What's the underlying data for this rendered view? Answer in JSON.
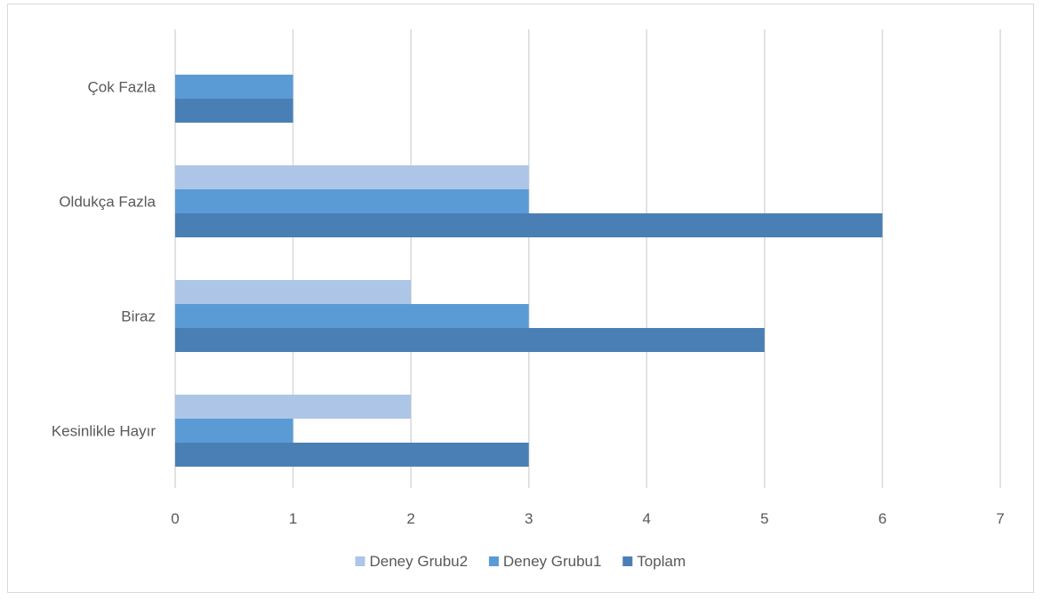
{
  "chart_data": {
    "type": "bar",
    "orientation": "horizontal",
    "categories": [
      "Kesinlikle Hayır",
      "Biraz",
      "Oldukça Fazla",
      "Çok Fazla"
    ],
    "series": [
      {
        "name": "Deney Grubu2",
        "values": [
          2,
          2,
          3,
          0
        ],
        "color": "#adc5e7"
      },
      {
        "name": "Deney Grubu1",
        "values": [
          1,
          3,
          3,
          1
        ],
        "color": "#5b9bd5"
      },
      {
        "name": "Toplam",
        "values": [
          3,
          5,
          6,
          1
        ],
        "color": "#4a7fb5"
      }
    ],
    "xlim": [
      0,
      7
    ],
    "x_ticks": [
      0,
      1,
      2,
      3,
      4,
      5,
      6,
      7
    ],
    "grid": "vertical",
    "legend_position": "bottom",
    "title": "",
    "xlabel": "",
    "ylabel": ""
  }
}
